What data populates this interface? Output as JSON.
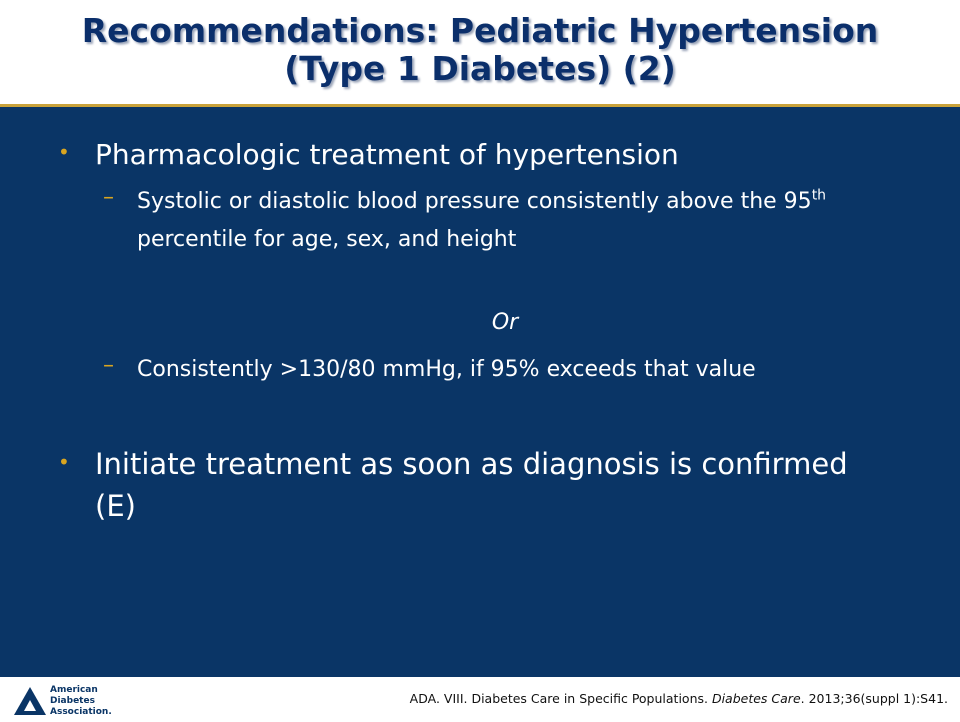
{
  "header": {
    "title": "Recommendations: Pediatric Hypertension (Type 1 Diabetes) (2)"
  },
  "body": {
    "bullets": [
      {
        "text": "Pharmacologic treatment of hypertension",
        "sub": [
          {
            "parts": [
              "Systolic or diastolic blood pressure consistently above the 95",
              "th",
              " percentile for age, sex, and height"
            ]
          },
          {
            "separator": "Or"
          },
          {
            "parts": [
              "Consistently >130/80 mmHg, if 95% exceeds that value"
            ]
          }
        ]
      },
      {
        "text": "Initiate treatment as soon as diagnosis is confirmed (E)"
      }
    ]
  },
  "footer": {
    "logo": [
      "American",
      "Diabetes",
      "Association."
    ],
    "citation": [
      "ADA. VIII. Diabetes Care in Specific Populations. ",
      "Diabetes Care",
      ". 2013;36(suppl 1):S41."
    ]
  }
}
